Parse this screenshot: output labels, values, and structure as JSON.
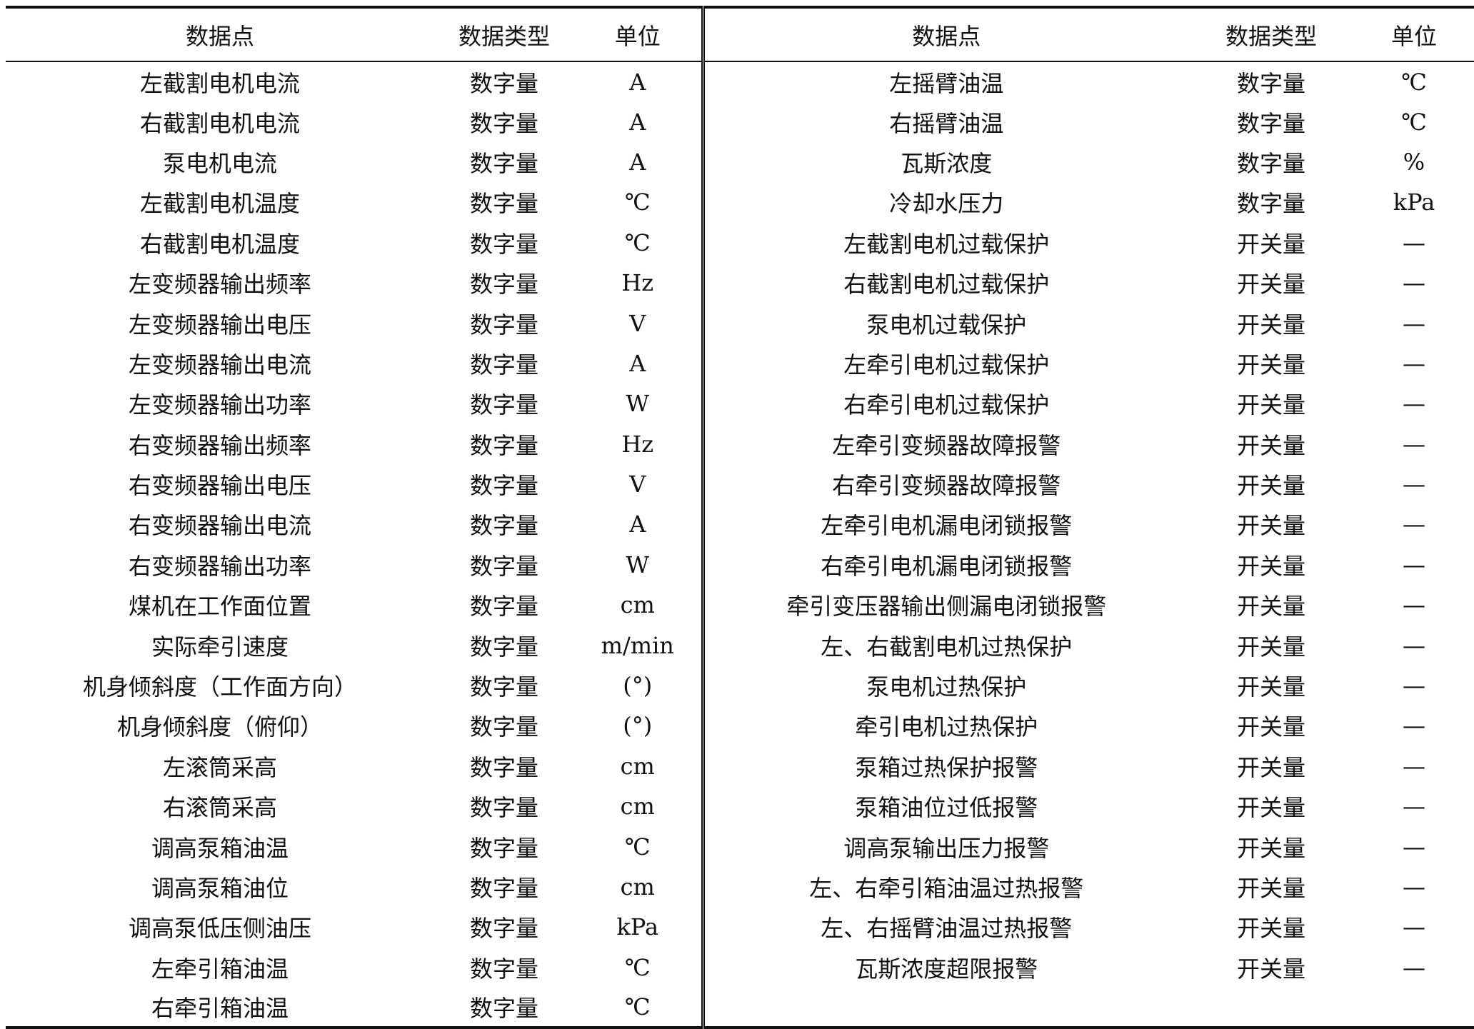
{
  "headers": [
    "数据点",
    "数据类型",
    "单位",
    "数据点",
    "数据类型",
    "单位"
  ],
  "left": [
    [
      "左截割电机电流",
      "数字量",
      "A"
    ],
    [
      "右截割电机电流",
      "数字量",
      "A"
    ],
    [
      "泵电机电流",
      "数字量",
      "A"
    ],
    [
      "左截割电机温度",
      "数字量",
      "℃"
    ],
    [
      "右截割电机温度",
      "数字量",
      "℃"
    ],
    [
      "左变频器输出频率",
      "数字量",
      "Hz"
    ],
    [
      "左变频器输出电压",
      "数字量",
      "V"
    ],
    [
      "左变频器输出电流",
      "数字量",
      "A"
    ],
    [
      "左变频器输出功率",
      "数字量",
      "W"
    ],
    [
      "右变频器输出频率",
      "数字量",
      "Hz"
    ],
    [
      "右变频器输出电压",
      "数字量",
      "V"
    ],
    [
      "右变频器输出电流",
      "数字量",
      "A"
    ],
    [
      "右变频器输出功率",
      "数字量",
      "W"
    ],
    [
      "煤机在工作面位置",
      "数字量",
      "cm"
    ],
    [
      "实际牵引速度",
      "数字量",
      "m/min"
    ],
    [
      "机身倾斜度（工作面方向）",
      "数字量",
      "(°)"
    ],
    [
      "机身倾斜度（俯仰）",
      "数字量",
      "(°)"
    ],
    [
      "左滚筒采高",
      "数字量",
      "cm"
    ],
    [
      "右滚筒采高",
      "数字量",
      "cm"
    ],
    [
      "调高泵箱油温",
      "数字量",
      "℃"
    ],
    [
      "调高泵箱油位",
      "数字量",
      "cm"
    ],
    [
      "调高泵低压侧油压",
      "数字量",
      "kPa"
    ],
    [
      "左牵引箱油温",
      "数字量",
      "℃"
    ],
    [
      "右牵引箱油温",
      "数字量",
      "℃"
    ]
  ],
  "right": [
    [
      "左摇臂油温",
      "数字量",
      "℃"
    ],
    [
      "右摇臂油温",
      "数字量",
      "℃"
    ],
    [
      "瓦斯浓度",
      "数字量",
      "%"
    ],
    [
      "冷却水压力",
      "数字量",
      "kPa"
    ],
    [
      "左截割电机过载保护",
      "开关量",
      "—"
    ],
    [
      "右截割电机过载保护",
      "开关量",
      "—"
    ],
    [
      "泵电机过载保护",
      "开关量",
      "—"
    ],
    [
      "左牵引电机过载保护",
      "开关量",
      "—"
    ],
    [
      "右牵引电机过载保护",
      "开关量",
      "—"
    ],
    [
      "左牵引变频器故障报警",
      "开关量",
      "—"
    ],
    [
      "右牵引变频器故障报警",
      "开关量",
      "—"
    ],
    [
      "左牵引电机漏电闭锁报警",
      "开关量",
      "—"
    ],
    [
      "右牵引电机漏电闭锁报警",
      "开关量",
      "—"
    ],
    [
      "牵引变压器输出侧漏电闭锁报警",
      "开关量",
      "—"
    ],
    [
      "左、右截割电机过热保护",
      "开关量",
      "—"
    ],
    [
      "泵电机过热保护",
      "开关量",
      "—"
    ],
    [
      "牵引电机过热保护",
      "开关量",
      "—"
    ],
    [
      "泵箱过热保护报警",
      "开关量",
      "—"
    ],
    [
      "泵箱油位过低报警",
      "开关量",
      "—"
    ],
    [
      "调高泵输出压力报警",
      "开关量",
      "—"
    ],
    [
      "左、右牵引箱油温过热报警",
      "开关量",
      "—"
    ],
    [
      "左、右摇臂油温过热报警",
      "开关量",
      "—"
    ],
    [
      "瓦斯浓度超限报警",
      "开关量",
      "—"
    ]
  ]
}
